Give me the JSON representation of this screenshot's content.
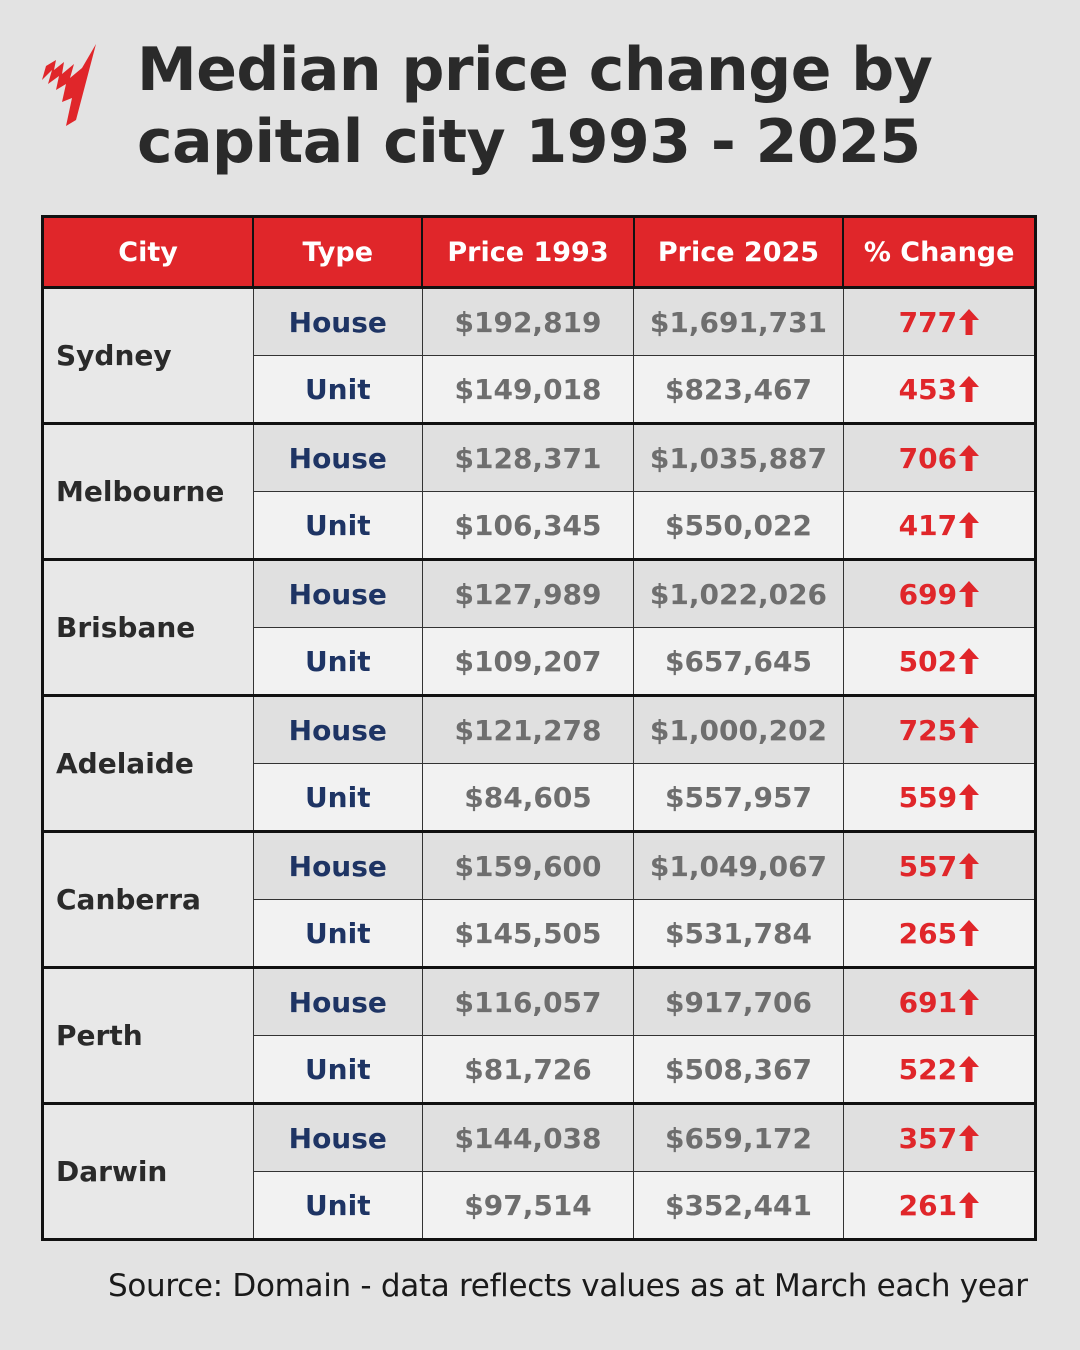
{
  "header": {
    "logo": "sbs-logo-icon",
    "title_line1": "Median price change by",
    "title_line2": "capital city 1993 - 2025"
  },
  "table": {
    "columns": [
      "City",
      "Type",
      "Price 1993",
      "Price 2025",
      "% Change"
    ],
    "rows": [
      {
        "city": "Sydney",
        "type": "House",
        "p1993": "$192,819",
        "p2025": "$1,691,731",
        "change": "777"
      },
      {
        "city": "Sydney",
        "type": "Unit",
        "p1993": "$149,018",
        "p2025": "$823,467",
        "change": "453"
      },
      {
        "city": "Melbourne",
        "type": "House",
        "p1993": "$128,371",
        "p2025": "$1,035,887",
        "change": "706"
      },
      {
        "city": "Melbourne",
        "type": "Unit",
        "p1993": "$106,345",
        "p2025": "$550,022",
        "change": "417"
      },
      {
        "city": "Brisbane",
        "type": "House",
        "p1993": "$127,989",
        "p2025": "$1,022,026",
        "change": "699"
      },
      {
        "city": "Brisbane",
        "type": "Unit",
        "p1993": "$109,207",
        "p2025": "$657,645",
        "change": "502"
      },
      {
        "city": "Adelaide",
        "type": "House",
        "p1993": "$121,278",
        "p2025": "$1,000,202",
        "change": "725"
      },
      {
        "city": "Adelaide",
        "type": "Unit",
        "p1993": "$84,605",
        "p2025": "$557,957",
        "change": "559"
      },
      {
        "city": "Canberra",
        "type": "House",
        "p1993": "$159,600",
        "p2025": "$1,049,067",
        "change": "557"
      },
      {
        "city": "Canberra",
        "type": "Unit",
        "p1993": "$145,505",
        "p2025": "$531,784",
        "change": "265"
      },
      {
        "city": "Perth",
        "type": "House",
        "p1993": "$116,057",
        "p2025": "$917,706",
        "change": "691"
      },
      {
        "city": "Perth",
        "type": "Unit",
        "p1993": "$81,726",
        "p2025": "$508,367",
        "change": "522"
      },
      {
        "city": "Darwin",
        "type": "House",
        "p1993": "$144,038",
        "p2025": "$659,172",
        "change": "357"
      },
      {
        "city": "Darwin",
        "type": "Unit",
        "p1993": "$97,514",
        "p2025": "$352,441",
        "change": "261"
      }
    ]
  },
  "footer": {
    "source": "Source: Domain - data reflects values as at March each year"
  },
  "colors": {
    "accent_red": "#e0262a",
    "type_blue": "#1e3464",
    "price_gray": "#6e6e6e",
    "background": "#e3e3e3"
  },
  "chart_data": {
    "type": "table",
    "title": "Median price change by capital city 1993 - 2025",
    "columns": [
      "City",
      "Type",
      "Price 1993",
      "Price 2025",
      "% Change"
    ],
    "rows": [
      [
        "Sydney",
        "House",
        192819,
        1691731,
        777
      ],
      [
        "Sydney",
        "Unit",
        149018,
        823467,
        453
      ],
      [
        "Melbourne",
        "House",
        128371,
        1035887,
        706
      ],
      [
        "Melbourne",
        "Unit",
        106345,
        550022,
        417
      ],
      [
        "Brisbane",
        "House",
        127989,
        1022026,
        699
      ],
      [
        "Brisbane",
        "Unit",
        109207,
        657645,
        502
      ],
      [
        "Adelaide",
        "House",
        121278,
        1000202,
        725
      ],
      [
        "Adelaide",
        "Unit",
        84605,
        557957,
        559
      ],
      [
        "Canberra",
        "House",
        159600,
        1049067,
        557
      ],
      [
        "Canberra",
        "Unit",
        145505,
        531784,
        265
      ],
      [
        "Perth",
        "House",
        116057,
        917706,
        691
      ],
      [
        "Perth",
        "Unit",
        81726,
        508367,
        522
      ],
      [
        "Darwin",
        "House",
        144038,
        659172,
        357
      ],
      [
        "Darwin",
        "Unit",
        97514,
        352441,
        261
      ]
    ],
    "annotations": [
      "All % changes marked with red up-arrow"
    ],
    "source": "Source: Domain - data reflects values as at March each year"
  }
}
